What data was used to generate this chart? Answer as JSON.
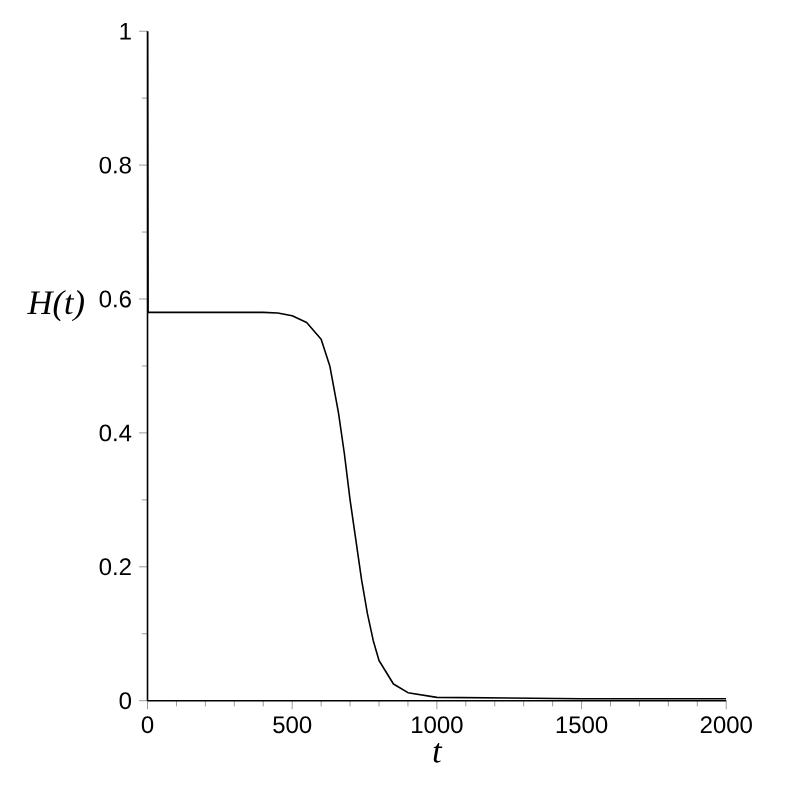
{
  "chart_data": {
    "type": "line",
    "xlabel": "t",
    "ylabel": "H(t)",
    "x": [
      0,
      2,
      400,
      450,
      500,
      550,
      600,
      630,
      660,
      680,
      700,
      720,
      740,
      760,
      780,
      800,
      850,
      900,
      1000,
      1500,
      2000
    ],
    "values": [
      1,
      0.58,
      0.58,
      0.579,
      0.575,
      0.565,
      0.54,
      0.5,
      0.43,
      0.37,
      0.3,
      0.24,
      0.18,
      0.13,
      0.09,
      0.06,
      0.025,
      0.012,
      0.005,
      0.003,
      0.003
    ],
    "color": "#000000",
    "xlim": [
      0,
      2000
    ],
    "ylim": [
      0,
      1
    ],
    "xticks": [
      0,
      500,
      1000,
      1500,
      2000
    ],
    "yticks": [
      0,
      0.2,
      0.4,
      0.6,
      0.8,
      1
    ],
    "grid": false,
    "marker": "none",
    "line_style": "solid"
  }
}
